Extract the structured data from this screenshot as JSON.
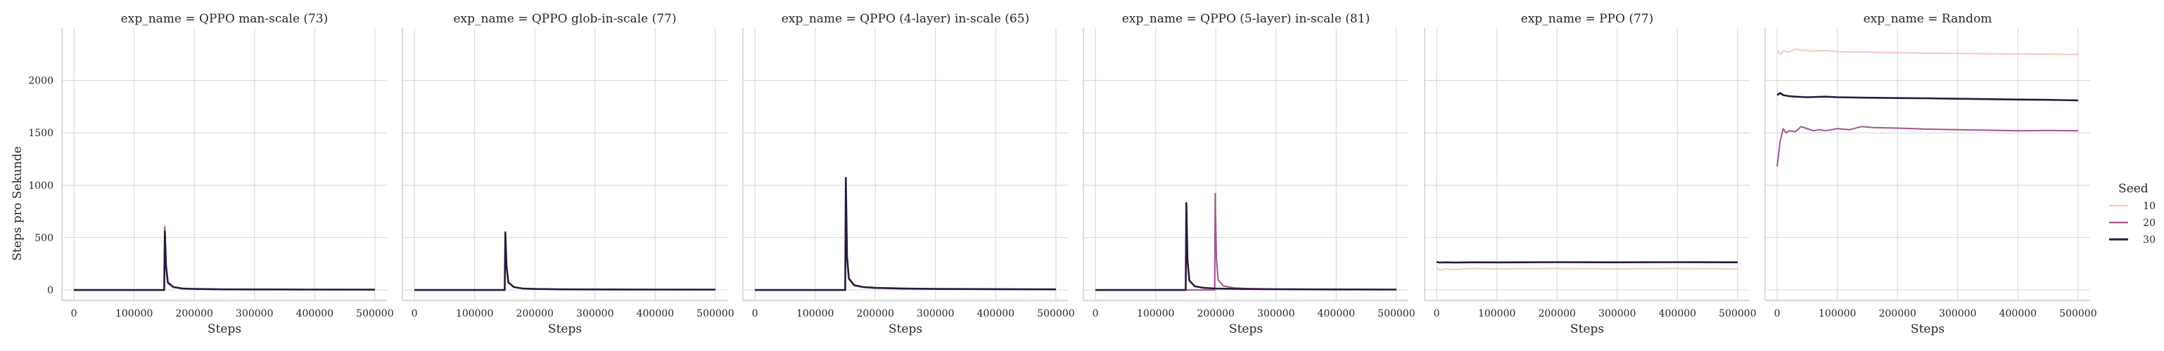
{
  "chart_data": {
    "type": "line",
    "ylabel": "Steps pro Sekunde",
    "xlabel": "Steps",
    "xlim": [
      -20000,
      520000
    ],
    "ylim": [
      -100,
      2500
    ],
    "x_ticks": [
      0,
      100000,
      200000,
      300000,
      400000,
      500000
    ],
    "x_tick_labels": [
      "0",
      "100000",
      "200000",
      "300000",
      "400000",
      "500000"
    ],
    "y_ticks": [
      0,
      500,
      1000,
      1500,
      2000
    ],
    "y_tick_labels": [
      "0",
      "500",
      "1000",
      "1500",
      "2000"
    ],
    "grid": true,
    "legend": {
      "title": "Seed",
      "placement": "right",
      "entries": [
        {
          "label": "10",
          "color": "#f2c9c0"
        },
        {
          "label": "20",
          "color": "#a3558a"
        },
        {
          "label": "30",
          "color": "#2a1a3a"
        }
      ]
    },
    "panels": [
      {
        "title": "exp_name = QPPO man-scale (73)",
        "series": [
          {
            "seed": "10",
            "x": [
              0,
              149000,
              150000,
              151000,
              153000,
              156000,
              165000,
              180000,
              200000,
              250000,
              300000,
              400000,
              500000
            ],
            "y": [
              0,
              0,
              0,
              620,
              250,
              80,
              30,
              15,
              10,
              6,
              5,
              4,
              3
            ]
          },
          {
            "seed": "20",
            "x": [
              0,
              149000,
              150000,
              151000,
              153000,
              156000,
              165000,
              180000,
              200000,
              250000,
              300000,
              400000,
              500000
            ],
            "y": [
              0,
              0,
              0,
              600,
              240,
              75,
              30,
              15,
              10,
              6,
              5,
              4,
              3
            ]
          },
          {
            "seed": "30",
            "x": [
              0,
              149000,
              150000,
              151000,
              153000,
              156000,
              165000,
              180000,
              200000,
              250000,
              300000,
              400000,
              500000
            ],
            "y": [
              0,
              0,
              0,
              560,
              230,
              70,
              28,
              14,
              10,
              6,
              5,
              4,
              3
            ]
          }
        ]
      },
      {
        "title": "exp_name = QPPO glob-in-scale (77)",
        "series": [
          {
            "seed": "10",
            "x": [
              0,
              149000,
              150000,
              151000,
              153000,
              156000,
              165000,
              180000,
              200000,
              250000,
              300000,
              400000,
              500000
            ],
            "y": [
              0,
              0,
              0,
              560,
              230,
              75,
              28,
              14,
              10,
              6,
              5,
              4,
              3
            ]
          },
          {
            "seed": "20",
            "x": [
              0,
              149000,
              150000,
              151000,
              153000,
              156000,
              165000,
              180000,
              200000,
              250000,
              300000,
              400000,
              500000
            ],
            "y": [
              0,
              0,
              0,
              540,
              220,
              70,
              28,
              14,
              10,
              6,
              5,
              4,
              3
            ]
          },
          {
            "seed": "30",
            "x": [
              0,
              149000,
              150000,
              151000,
              153000,
              156000,
              165000,
              180000,
              200000,
              250000,
              300000,
              400000,
              500000
            ],
            "y": [
              0,
              0,
              0,
              550,
              225,
              72,
              28,
              14,
              10,
              6,
              5,
              4,
              3
            ]
          }
        ]
      },
      {
        "title": "exp_name = QPPO (4-layer) in-scale (65)",
        "series": [
          {
            "seed": "10",
            "x": [
              0,
              149000,
              150000,
              151000,
              153000,
              156000,
              165000,
              180000,
              200000,
              250000,
              300000,
              400000,
              500000
            ],
            "y": [
              0,
              0,
              0,
              1000,
              300,
              100,
              40,
              25,
              18,
              12,
              10,
              8,
              6
            ]
          },
          {
            "seed": "20",
            "x": [
              0,
              149000,
              150000,
              151000,
              153000,
              156000,
              165000,
              180000,
              200000,
              250000,
              300000,
              400000,
              500000
            ],
            "y": [
              0,
              0,
              0,
              1040,
              310,
              105,
              42,
              26,
              18,
              12,
              10,
              8,
              6
            ]
          },
          {
            "seed": "30",
            "x": [
              0,
              149000,
              150000,
              151000,
              153000,
              156000,
              165000,
              180000,
              200000,
              250000,
              300000,
              400000,
              500000
            ],
            "y": [
              0,
              0,
              0,
              1070,
              320,
              110,
              45,
              28,
              20,
              13,
              10,
              8,
              6
            ]
          }
        ]
      },
      {
        "title": "exp_name = QPPO (5-layer) in-scale (81)",
        "series": [
          {
            "seed": "10",
            "x": [
              0,
              149000,
              150000,
              151000,
              153000,
              156000,
              165000,
              180000,
              200000,
              250000,
              300000,
              400000,
              500000
            ],
            "y": [
              0,
              0,
              0,
              820,
              280,
              90,
              35,
              20,
              14,
              9,
              7,
              5,
              4
            ]
          },
          {
            "seed": "20",
            "x": [
              0,
              197000,
              198000,
              199000,
              201000,
              204000,
              213000,
              230000,
              250000,
              300000,
              400000,
              500000
            ],
            "y": [
              0,
              0,
              0,
              920,
              300,
              95,
              38,
              20,
              14,
              9,
              6,
              4
            ]
          },
          {
            "seed": "30",
            "x": [
              0,
              149000,
              150000,
              151000,
              153000,
              156000,
              165000,
              180000,
              200000,
              250000,
              300000,
              400000,
              500000
            ],
            "y": [
              0,
              0,
              0,
              830,
              280,
              90,
              35,
              20,
              14,
              9,
              7,
              5,
              4
            ]
          }
        ]
      },
      {
        "title": "exp_name = PPO (77)",
        "series": [
          {
            "seed": "10",
            "x": [
              0,
              5000,
              15000,
              30000,
              60000,
              100000,
              200000,
              300000,
              400000,
              500000
            ],
            "y": [
              210,
              190,
              200,
              195,
              205,
              200,
              205,
              200,
              205,
              200
            ]
          },
          {
            "seed": "20",
            "x": [
              0,
              5000,
              15000,
              30000,
              60000,
              100000,
              200000,
              300000,
              400000,
              500000
            ],
            "y": [
              270,
              262,
              265,
              263,
              265,
              264,
              266,
              265,
              266,
              265
            ]
          },
          {
            "seed": "30",
            "x": [
              0,
              5000,
              15000,
              30000,
              60000,
              100000,
              200000,
              300000,
              400000,
              500000
            ],
            "y": [
              268,
              262,
              264,
              262,
              264,
              263,
              265,
              264,
              265,
              264
            ]
          }
        ]
      },
      {
        "title": "exp_name = Random",
        "series": [
          {
            "seed": "10",
            "x": [
              0,
              5000,
              10000,
              20000,
              30000,
              40000,
              60000,
              80000,
              100000,
              150000,
              200000,
              250000,
              300000,
              350000,
              400000,
              450000,
              500000
            ],
            "y": [
              2290,
              2250,
              2280,
              2270,
              2300,
              2290,
              2280,
              2285,
              2275,
              2270,
              2265,
              2260,
              2258,
              2255,
              2252,
              2250,
              2248
            ]
          },
          {
            "seed": "20",
            "x": [
              0,
              5000,
              10000,
              15000,
              20000,
              30000,
              40000,
              50000,
              60000,
              70000,
              80000,
              100000,
              120000,
              140000,
              160000,
              200000,
              250000,
              300000,
              350000,
              400000,
              450000,
              500000
            ],
            "y": [
              1180,
              1420,
              1540,
              1500,
              1520,
              1510,
              1560,
              1540,
              1520,
              1530,
              1520,
              1540,
              1530,
              1560,
              1550,
              1545,
              1535,
              1530,
              1525,
              1520,
              1522,
              1520
            ]
          },
          {
            "seed": "30",
            "x": [
              0,
              5000,
              10000,
              20000,
              30000,
              50000,
              80000,
              100000,
              150000,
              200000,
              250000,
              300000,
              350000,
              400000,
              450000,
              500000
            ],
            "y": [
              1860,
              1880,
              1860,
              1850,
              1845,
              1840,
              1845,
              1840,
              1835,
              1832,
              1830,
              1825,
              1822,
              1818,
              1815,
              1810
            ]
          }
        ]
      }
    ]
  }
}
